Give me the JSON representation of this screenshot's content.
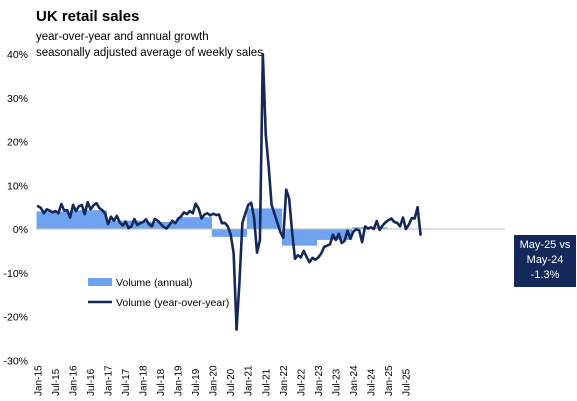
{
  "chart_data": {
    "type": "line",
    "title": "UK retail sales",
    "subtitle_lines": [
      "year-over-year  and annual growth",
      "seasonally adjusted average  of weekly sales"
    ],
    "ylim": [
      -30,
      45
    ],
    "yticks": [
      -30,
      -20,
      -10,
      0,
      10,
      20,
      30,
      40
    ],
    "ytick_labels": [
      "-30%",
      "-20%",
      "-10%",
      "0%",
      "10%",
      "20%",
      "30%",
      "40%"
    ],
    "xticks": [
      "Jan-15",
      "Jul-15",
      "Jan-16",
      "Jul-16",
      "Jan-17",
      "Jul-17",
      "Jan-18",
      "Jul-18",
      "Jan-19",
      "Jul-19",
      "Jan-20",
      "Jul-20",
      "Jan-21",
      "Jul-21",
      "Jan-22",
      "Jul-22",
      "Jan-23",
      "Jul-23",
      "Jan-24",
      "Jul-24",
      "Jan-25",
      "Jul-25"
    ],
    "x_start": "Jan-15",
    "legend": {
      "placement": "bottom-left"
    },
    "colors": {
      "annual": "#6fa3ef",
      "yoy": "#14285a",
      "callout_bg": "#14285a"
    },
    "series": [
      {
        "name": "Volume (annual)",
        "kind": "area",
        "values": [
          4.0,
          4.0,
          4.0,
          4.0,
          4.0,
          4.0,
          4.0,
          4.0,
          4.0,
          4.0,
          4.0,
          4.0,
          4.3,
          4.3,
          4.3,
          4.3,
          4.3,
          4.3,
          4.3,
          4.3,
          4.3,
          4.3,
          4.3,
          4.3,
          1.9,
          1.9,
          1.9,
          1.9,
          1.9,
          1.9,
          1.9,
          1.9,
          1.9,
          1.9,
          1.9,
          1.9,
          1.6,
          1.6,
          1.6,
          1.6,
          1.6,
          1.6,
          1.6,
          1.6,
          1.6,
          1.6,
          1.6,
          1.6,
          2.7,
          2.7,
          2.7,
          2.7,
          2.7,
          2.7,
          2.7,
          2.7,
          2.7,
          2.7,
          2.7,
          2.7,
          -1.8,
          -1.8,
          -1.8,
          -1.8,
          -1.8,
          -1.8,
          -1.8,
          -1.8,
          -1.8,
          -1.8,
          -1.8,
          -1.8,
          4.7,
          4.7,
          4.7,
          4.7,
          4.7,
          4.7,
          4.7,
          4.7,
          4.7,
          4.7,
          4.7,
          4.7,
          -3.8,
          -3.8,
          -3.8,
          -3.8,
          -3.8,
          -3.8,
          -3.8,
          -3.8,
          -3.8,
          -3.8,
          -3.8,
          -3.8,
          -2.5,
          -2.5,
          -2.5,
          -2.5,
          -2.5,
          -2.5,
          -2.5,
          -2.5,
          -2.5,
          -2.5,
          -2.5,
          -2.5,
          0.4,
          0.4,
          0.4,
          0.4,
          0.4,
          0.4,
          0.4,
          0.4,
          0.4,
          0.4,
          0.4,
          0.4
        ]
      },
      {
        "name": "Volume (year-over-year)",
        "kind": "line",
        "values": [
          5.2,
          4.8,
          3.6,
          4.5,
          4.2,
          3.8,
          4.1,
          3.6,
          5.7,
          4.2,
          4.3,
          2.6,
          5.5,
          4.1,
          5.2,
          5.5,
          3.4,
          6.1,
          4.5,
          5.4,
          5.9,
          4.8,
          4.3,
          3.5,
          1.1,
          2.8,
          1.9,
          3.0,
          1.5,
          0.8,
          1.7,
          0.2,
          0.6,
          2.3,
          0.9,
          1.3,
          1.6,
          2.2,
          1.1,
          0.6,
          2.3,
          1.9,
          1.2,
          0.5,
          0.1,
          0.9,
          1.9,
          1.3,
          2.3,
          2.9,
          3.8,
          3.4,
          4.1,
          3.6,
          5.8,
          4.7,
          2.4,
          3.3,
          3.6,
          3.1,
          3.5,
          3.2,
          3.3,
          1.3,
          1.4,
          0.6,
          -1.3,
          -5.5,
          -23.0,
          -12.0,
          1.4,
          3.5,
          5.5,
          6.0,
          2.6,
          -5.4,
          -2.5,
          40.0,
          21.6,
          14.2,
          5.5,
          3.5,
          1.4,
          -0.7,
          -2.0,
          9.0,
          7.0,
          -0.5,
          -6.8,
          -6.0,
          -6.5,
          -5.0,
          -6.4,
          -7.6,
          -6.6,
          -7.0,
          -6.5,
          -5.6,
          -4.1,
          -3.8,
          -3.5,
          -1.3,
          -2.5,
          -1.1,
          -3.2,
          -2.7,
          -0.4,
          -2.2,
          -0.6,
          -0.1,
          -0.3,
          -3.0,
          0.6,
          0.1,
          0.4,
          0.0,
          1.8,
          -0.2,
          0.8,
          1.5,
          2.0,
          2.4,
          1.6,
          1.4,
          0.6,
          2.6,
          0.0,
          1.0,
          2.5,
          2.4,
          5.0,
          -1.3
        ]
      }
    ],
    "callout": {
      "lines": [
        "May-25 vs",
        "May-24",
        "-1.3%"
      ],
      "value": -1.3
    }
  }
}
